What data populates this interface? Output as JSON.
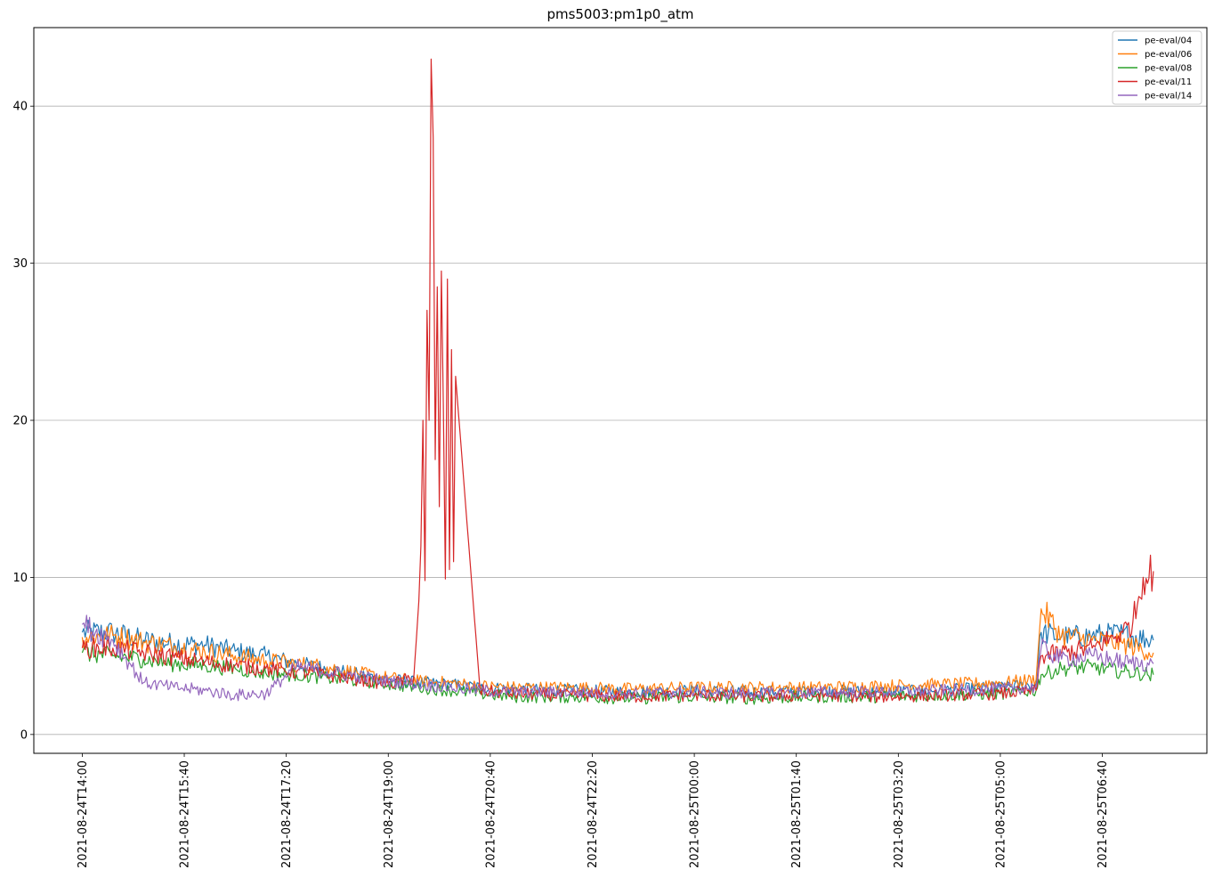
{
  "chart_data": {
    "type": "line",
    "title": "pms5003:pm1p0_atm",
    "xlabel": "",
    "ylabel": "",
    "x_start": "2021-08-24T14:00",
    "x_end": "2021-08-25T07:35",
    "xlim": [
      "2021-08-24T14:00",
      "2021-08-25T07:35"
    ],
    "ylim": [
      0,
      45
    ],
    "y_ticks": [
      0,
      10,
      20,
      30,
      40
    ],
    "x_ticks": [
      "2021-08-24T14:00",
      "2021-08-24T15:40",
      "2021-08-24T17:20",
      "2021-08-24T19:00",
      "2021-08-24T20:40",
      "2021-08-24T22:20",
      "2021-08-25T00:00",
      "2021-08-25T01:40",
      "2021-08-25T03:20",
      "2021-08-25T05:00",
      "2021-08-25T06:40"
    ],
    "grid": "y",
    "legend_position": "top-right",
    "series": [
      {
        "name": "pe-eval/04",
        "color": "#1f77b4",
        "x": [
          "2021-08-24T14:00",
          "2021-08-24T14:30",
          "2021-08-24T15:00",
          "2021-08-24T15:30",
          "2021-08-24T16:00",
          "2021-08-24T16:30",
          "2021-08-24T17:00",
          "2021-08-24T17:30",
          "2021-08-24T18:00",
          "2021-08-24T18:30",
          "2021-08-24T19:00",
          "2021-08-24T19:30",
          "2021-08-24T20:00",
          "2021-08-24T20:30",
          "2021-08-24T21:00",
          "2021-08-24T22:00",
          "2021-08-24T23:00",
          "2021-08-25T00:00",
          "2021-08-25T01:00",
          "2021-08-25T02:00",
          "2021-08-25T03:00",
          "2021-08-25T04:00",
          "2021-08-25T05:00",
          "2021-08-25T05:35",
          "2021-08-25T05:40",
          "2021-08-25T06:00",
          "2021-08-25T06:30",
          "2021-08-25T07:00",
          "2021-08-25T07:30"
        ],
        "y": [
          6.5,
          6.5,
          6.0,
          5.8,
          5.7,
          5.3,
          5.0,
          4.5,
          4.2,
          3.8,
          3.5,
          3.3,
          3.2,
          3.0,
          2.9,
          2.8,
          2.7,
          2.8,
          2.7,
          2.8,
          2.7,
          2.8,
          3.0,
          3.2,
          6.5,
          6.2,
          6.3,
          6.4,
          6.0
        ]
      },
      {
        "name": "pe-eval/06",
        "color": "#ff7f0e",
        "x": [
          "2021-08-24T14:00",
          "2021-08-24T14:30",
          "2021-08-24T15:00",
          "2021-08-24T15:30",
          "2021-08-24T16:00",
          "2021-08-24T16:30",
          "2021-08-24T17:00",
          "2021-08-24T17:30",
          "2021-08-24T18:00",
          "2021-08-24T18:30",
          "2021-08-24T19:00",
          "2021-08-24T19:30",
          "2021-08-24T20:00",
          "2021-08-24T20:30",
          "2021-08-24T21:00",
          "2021-08-24T22:00",
          "2021-08-24T23:00",
          "2021-08-25T00:00",
          "2021-08-25T01:00",
          "2021-08-25T02:00",
          "2021-08-25T03:00",
          "2021-08-25T04:00",
          "2021-08-25T05:00",
          "2021-08-25T05:35",
          "2021-08-25T05:40",
          "2021-08-25T06:00",
          "2021-08-25T06:30",
          "2021-08-25T07:00",
          "2021-08-25T07:30"
        ],
        "y": [
          6.2,
          6.3,
          5.9,
          5.6,
          5.3,
          5.0,
          4.7,
          4.5,
          4.3,
          3.9,
          3.6,
          3.4,
          3.3,
          3.1,
          3.0,
          3.0,
          2.9,
          3.0,
          3.0,
          3.0,
          3.1,
          3.2,
          3.3,
          3.5,
          8.0,
          6.3,
          6.0,
          5.8,
          5.2
        ]
      },
      {
        "name": "pe-eval/08",
        "color": "#2ca02c",
        "x": [
          "2021-08-24T14:00",
          "2021-08-24T14:30",
          "2021-08-24T15:00",
          "2021-08-24T15:30",
          "2021-08-24T16:00",
          "2021-08-24T16:30",
          "2021-08-24T17:00",
          "2021-08-24T17:30",
          "2021-08-24T18:00",
          "2021-08-24T18:30",
          "2021-08-24T19:00",
          "2021-08-24T19:30",
          "2021-08-24T20:00",
          "2021-08-24T20:30",
          "2021-08-24T21:00",
          "2021-08-24T22:00",
          "2021-08-24T23:00",
          "2021-08-25T00:00",
          "2021-08-25T01:00",
          "2021-08-25T02:00",
          "2021-08-25T03:00",
          "2021-08-25T04:00",
          "2021-08-25T05:00",
          "2021-08-25T05:35",
          "2021-08-25T05:40",
          "2021-08-25T06:00",
          "2021-08-25T06:30",
          "2021-08-25T07:00",
          "2021-08-25T07:30"
        ],
        "y": [
          5.2,
          5.0,
          4.8,
          4.5,
          4.4,
          4.2,
          3.9,
          3.8,
          3.6,
          3.4,
          3.2,
          3.0,
          2.8,
          2.6,
          2.4,
          2.4,
          2.3,
          2.4,
          2.3,
          2.4,
          2.4,
          2.5,
          2.6,
          2.8,
          3.8,
          4.2,
          4.3,
          4.0,
          3.8
        ]
      },
      {
        "name": "pe-eval/11",
        "color": "#d62728",
        "x": [
          "2021-08-24T14:00",
          "2021-08-24T14:30",
          "2021-08-24T15:00",
          "2021-08-24T15:30",
          "2021-08-24T16:00",
          "2021-08-24T16:30",
          "2021-08-24T17:00",
          "2021-08-24T17:30",
          "2021-08-24T18:00",
          "2021-08-24T18:30",
          "2021-08-24T19:00",
          "2021-08-24T19:25",
          "2021-08-24T19:30",
          "2021-08-24T19:32",
          "2021-08-24T19:34",
          "2021-08-24T19:36",
          "2021-08-24T19:38",
          "2021-08-24T19:40",
          "2021-08-24T19:42",
          "2021-08-24T19:44",
          "2021-08-24T19:46",
          "2021-08-24T19:48",
          "2021-08-24T19:50",
          "2021-08-24T19:52",
          "2021-08-24T19:54",
          "2021-08-24T19:56",
          "2021-08-24T19:58",
          "2021-08-24T20:00",
          "2021-08-24T20:02",
          "2021-08-24T20:04",
          "2021-08-24T20:06",
          "2021-08-24T20:30",
          "2021-08-24T21:00",
          "2021-08-24T22:00",
          "2021-08-24T23:00",
          "2021-08-25T00:00",
          "2021-08-25T01:00",
          "2021-08-25T02:00",
          "2021-08-25T03:00",
          "2021-08-25T04:00",
          "2021-08-25T05:00",
          "2021-08-25T05:35",
          "2021-08-25T05:40",
          "2021-08-25T06:00",
          "2021-08-25T06:30",
          "2021-08-25T07:00",
          "2021-08-25T07:10",
          "2021-08-25T07:20",
          "2021-08-25T07:30"
        ],
        "y": [
          5.5,
          5.5,
          5.2,
          4.9,
          4.6,
          4.4,
          4.2,
          4.0,
          3.8,
          3.5,
          3.2,
          3.6,
          8.5,
          12.0,
          20.0,
          9.8,
          27.0,
          20.0,
          43.0,
          38.0,
          17.5,
          28.5,
          14.5,
          29.5,
          21.0,
          9.9,
          29.0,
          10.5,
          24.5,
          11.0,
          22.8,
          2.8,
          2.6,
          2.5,
          2.4,
          2.5,
          2.4,
          2.5,
          2.4,
          2.5,
          2.6,
          2.8,
          5.0,
          5.2,
          5.5,
          6.5,
          7.2,
          10.0,
          10.4
        ]
      },
      {
        "name": "pe-eval/14",
        "color": "#9467bd",
        "x": [
          "2021-08-24T14:00",
          "2021-08-24T14:30",
          "2021-08-24T15:00",
          "2021-08-24T15:30",
          "2021-08-24T16:00",
          "2021-08-24T16:30",
          "2021-08-24T17:00",
          "2021-08-24T17:30",
          "2021-08-24T18:00",
          "2021-08-24T18:30",
          "2021-08-24T19:00",
          "2021-08-24T19:30",
          "2021-08-24T20:00",
          "2021-08-24T20:30",
          "2021-08-24T21:00",
          "2021-08-24T22:00",
          "2021-08-24T23:00",
          "2021-08-25T00:00",
          "2021-08-25T01:00",
          "2021-08-25T02:00",
          "2021-08-25T03:00",
          "2021-08-25T04:00",
          "2021-08-25T05:00",
          "2021-08-25T05:35",
          "2021-08-25T05:40",
          "2021-08-25T06:00",
          "2021-08-25T06:30",
          "2021-08-25T07:00",
          "2021-08-25T07:30"
        ],
        "y": [
          7.0,
          6.0,
          3.3,
          3.0,
          2.8,
          2.5,
          2.6,
          4.3,
          4.0,
          3.7,
          3.4,
          3.2,
          3.0,
          2.8,
          2.7,
          2.7,
          2.6,
          2.7,
          2.6,
          2.7,
          2.7,
          2.8,
          2.9,
          3.0,
          5.5,
          4.8,
          5.0,
          4.6,
          4.5
        ]
      }
    ]
  }
}
